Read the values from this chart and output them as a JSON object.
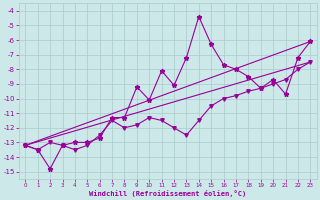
{
  "xlabel": "Windchill (Refroidissement éolien,°C)",
  "bg_color": "#cce8e8",
  "grid_color": "#aacccc",
  "line_color": "#990099",
  "xlim": [
    -0.5,
    23.5
  ],
  "ylim": [
    -15.5,
    -3.5
  ],
  "xticks": [
    0,
    1,
    2,
    3,
    4,
    5,
    6,
    7,
    8,
    9,
    10,
    11,
    12,
    13,
    14,
    15,
    16,
    17,
    18,
    19,
    20,
    21,
    22,
    23
  ],
  "yticks": [
    -4,
    -5,
    -6,
    -7,
    -8,
    -9,
    -10,
    -11,
    -12,
    -13,
    -14,
    -15
  ],
  "line1_x": [
    0,
    1,
    2,
    3,
    4,
    5,
    6,
    7,
    8,
    9,
    10,
    11,
    12,
    13,
    14,
    15,
    16,
    17,
    18,
    19,
    20,
    21,
    22,
    23
  ],
  "line1_y": [
    -13.2,
    -13.5,
    -14.8,
    -13.2,
    -13.0,
    -13.0,
    -12.7,
    -11.3,
    -11.3,
    -9.2,
    -10.1,
    -8.1,
    -9.1,
    -7.2,
    -4.4,
    -6.3,
    -7.7,
    -8.0,
    -8.5,
    -9.3,
    -8.7,
    -9.7,
    -7.2,
    -6.1
  ],
  "line2_x": [
    0,
    1,
    2,
    3,
    4,
    5,
    6,
    7,
    8,
    9,
    10,
    11,
    12,
    13,
    14,
    15,
    16,
    17,
    18,
    19,
    20,
    21,
    22,
    23
  ],
  "line2_y": [
    -13.2,
    -13.5,
    -13.0,
    -13.2,
    -13.5,
    -13.2,
    -12.5,
    -11.5,
    -12.0,
    -11.8,
    -11.3,
    -11.5,
    -12.0,
    -12.5,
    -11.5,
    -10.5,
    -10.0,
    -9.8,
    -9.5,
    -9.3,
    -9.0,
    -8.7,
    -8.0,
    -7.5
  ],
  "line3_x": [
    0,
    23
  ],
  "line3_y": [
    -13.2,
    -6.1
  ],
  "line4_x": [
    0,
    23
  ],
  "line4_y": [
    -13.2,
    -7.5
  ]
}
